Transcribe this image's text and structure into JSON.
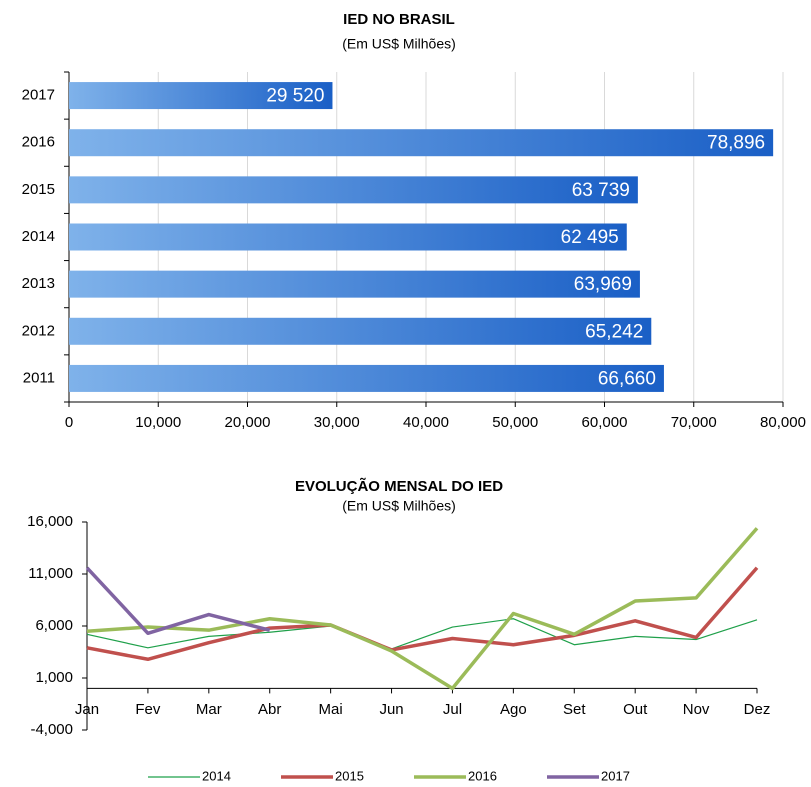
{
  "chart_data": [
    {
      "type": "bar",
      "orientation": "horizontal",
      "title": "IED NO BRASIL",
      "subtitle": "(Em US$ Milhões)",
      "categories": [
        "2017",
        "2016",
        "2015",
        "2014",
        "2013",
        "2012",
        "2011"
      ],
      "values": [
        29520,
        78896,
        63739,
        62495,
        63969,
        65242,
        66660
      ],
      "value_labels": [
        "29 520",
        "78,896",
        "63 739",
        "62 495",
        "63,969",
        "65,242",
        "66,660"
      ],
      "color": "#1f66c9",
      "grid": true,
      "xlim": [
        0,
        80000
      ],
      "xticks": [
        0,
        {
          "value": 10000,
          "label": "10,000"
        },
        {
          "value": 20000,
          "label": "20,000"
        },
        {
          "value": 30000,
          "label": "30,000"
        },
        {
          "value": 40000,
          "label": "40,000"
        },
        {
          "value": 50000,
          "label": "50,000"
        },
        {
          "value": 60000,
          "label": "60,000"
        },
        {
          "value": 70000,
          "label": "70,000"
        },
        {
          "value": 80000,
          "label": "80,000"
        }
      ]
    },
    {
      "type": "line",
      "title": "EVOLUÇÃO MENSAL DO IED",
      "subtitle": "(Em US$ Milhões)",
      "categories": [
        "Jan",
        "Fev",
        "Mar",
        "Abr",
        "Mai",
        "Jun",
        "Jul",
        "Ago",
        "Set",
        "Out",
        "Nov",
        "Dez"
      ],
      "ylim": [
        -4000,
        16000
      ],
      "yticks": [
        {
          "value": -4000,
          "label": "-4,000"
        },
        {
          "value": 1000,
          "label": "1,000"
        },
        {
          "value": 6000,
          "label": "6,000"
        },
        {
          "value": 11000,
          "label": "11,000"
        },
        {
          "value": 16000,
          "label": "16,000"
        }
      ],
      "legend": "bottom",
      "series": [
        {
          "name": "2014",
          "color": "#1fa04a",
          "width": 1.2,
          "values": [
            5200,
            3900,
            5000,
            5400,
            6000,
            3800,
            5900,
            6700,
            4200,
            5000,
            4700,
            6600
          ]
        },
        {
          "name": "2015",
          "color": "#c0504d",
          "width": 3.5,
          "values": [
            3900,
            2800,
            4400,
            5800,
            6100,
            3700,
            4800,
            4200,
            5100,
            6500,
            4900,
            11600
          ]
        },
        {
          "name": "2016",
          "color": "#9bbb59",
          "width": 3.5,
          "values": [
            5500,
            5900,
            5600,
            6700,
            6100,
            3600,
            0,
            7200,
            5200,
            8400,
            8700,
            15400
          ]
        },
        {
          "name": "2017",
          "color": "#8064a2",
          "width": 3.5,
          "values": [
            11600,
            5300,
            7100,
            5600,
            null,
            null,
            null,
            null,
            null,
            null,
            null,
            null
          ]
        }
      ]
    }
  ]
}
